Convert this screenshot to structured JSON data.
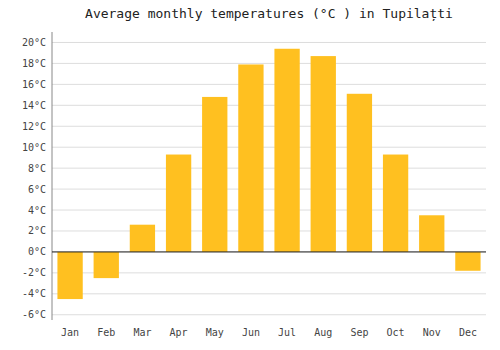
{
  "chart_data": {
    "type": "bar",
    "title": "Average monthly temperatures (°C ) in Tupilațti",
    "categories": [
      "Jan",
      "Feb",
      "Mar",
      "Apr",
      "May",
      "Jun",
      "Jul",
      "Aug",
      "Sep",
      "Oct",
      "Nov",
      "Dec"
    ],
    "values": [
      -4.5,
      -2.5,
      2.6,
      9.3,
      14.8,
      17.9,
      19.4,
      18.7,
      15.1,
      9.3,
      3.5,
      -1.8
    ],
    "color": "#FFC020",
    "ylim": [
      -6.5,
      21
    ],
    "yticks": [
      {
        "value": -6,
        "label": "-6°C"
      },
      {
        "value": -4,
        "label": "-4°C"
      },
      {
        "value": -2,
        "label": "-2°C"
      },
      {
        "value": 0,
        "label": "0°C"
      },
      {
        "value": 2,
        "label": "2°C"
      },
      {
        "value": 4,
        "label": "4°C"
      },
      {
        "value": 6,
        "label": "6°C"
      },
      {
        "value": 8,
        "label": "8°C"
      },
      {
        "value": 10,
        "label": "10°C"
      },
      {
        "value": 12,
        "label": "12°C"
      },
      {
        "value": 14,
        "label": "14°C"
      },
      {
        "value": 16,
        "label": "16°C"
      },
      {
        "value": 18,
        "label": "18°C"
      },
      {
        "value": 20,
        "label": "20°C"
      }
    ],
    "grid": true
  }
}
